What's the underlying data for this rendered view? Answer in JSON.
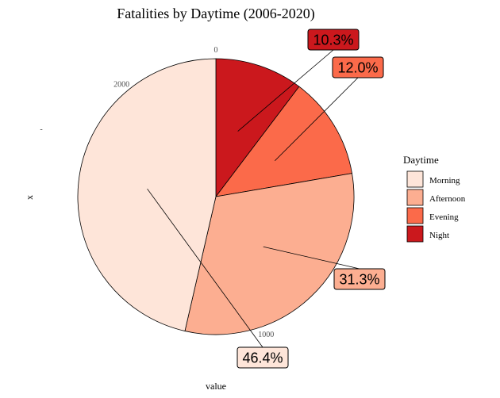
{
  "chart_data": {
    "type": "pie",
    "title": "Fatalities by Daytime (2006-2020)",
    "xlabel": "value",
    "ylabel": "x",
    "y_tick_label": "-",
    "theta_ticks": [
      {
        "value": 0,
        "label": "0"
      },
      {
        "value": 1000,
        "label": "1000"
      },
      {
        "value": 2000,
        "label": "2000"
      }
    ],
    "total": 2250,
    "direction": "counterclockwise",
    "legend": {
      "title": "Daytime",
      "position": "right",
      "entries": [
        "Morning",
        "Afternoon",
        "Evening",
        "Night"
      ]
    },
    "slices": [
      {
        "name": "Morning",
        "percent": 46.4,
        "label": "46.4%",
        "color": "#FEE5D9"
      },
      {
        "name": "Afternoon",
        "percent": 31.3,
        "label": "31.3%",
        "color": "#FCAE91"
      },
      {
        "name": "Evening",
        "percent": 12.0,
        "label": "12.0%",
        "color": "#FB6A4A"
      },
      {
        "name": "Night",
        "percent": 10.3,
        "label": "10.3%",
        "color": "#CB181D"
      }
    ]
  }
}
